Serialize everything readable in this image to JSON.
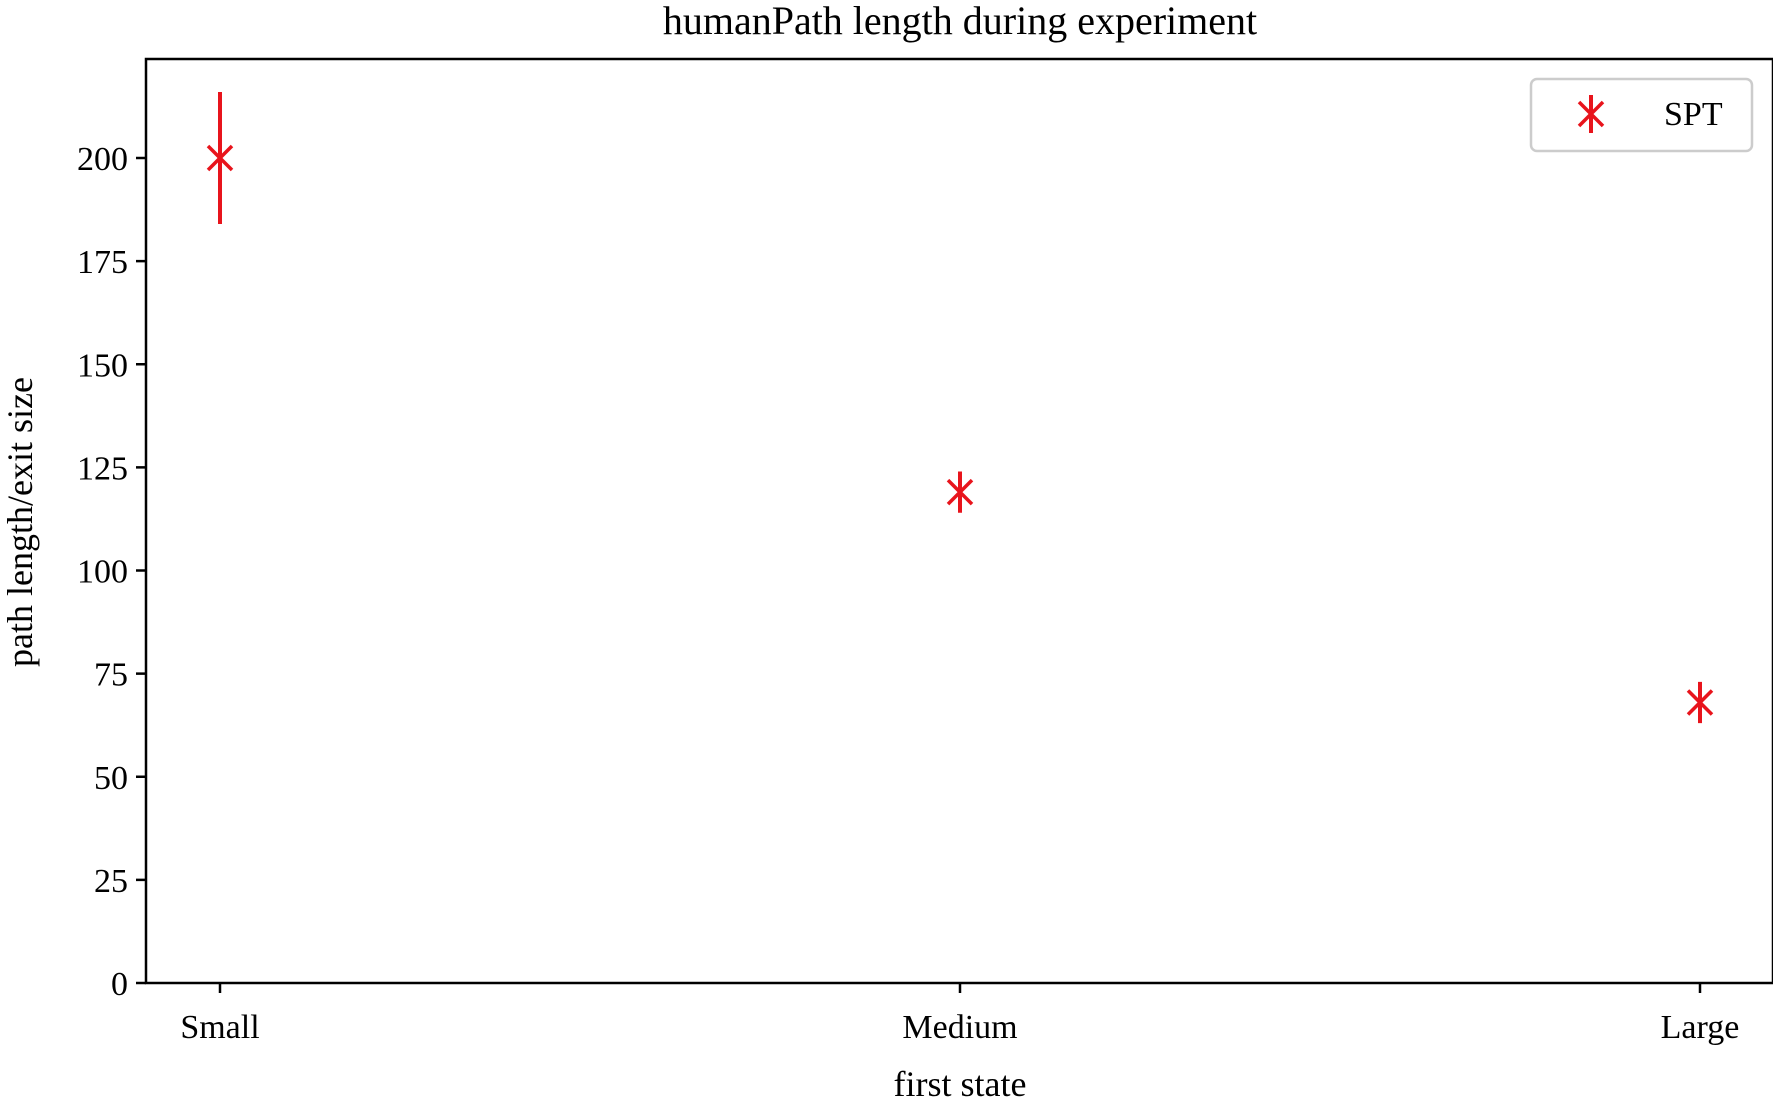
{
  "chart_data": {
    "type": "scatter",
    "title": "humanPath length during experiment",
    "xlabel": "first state",
    "ylabel": "path length/exit size",
    "categories": [
      "Small",
      "Medium",
      "Large"
    ],
    "ylim": [
      0,
      224
    ],
    "yticks": [
      0,
      25,
      50,
      75,
      100,
      125,
      150,
      175,
      200
    ],
    "grid": false,
    "legend_position": "top-right",
    "series": [
      {
        "name": "SPT",
        "color": "#e8141c",
        "marker": "x",
        "values": [
          200,
          119,
          68
        ],
        "error_low": [
          184,
          114,
          63
        ],
        "error_high": [
          216,
          124,
          73
        ]
      }
    ]
  }
}
